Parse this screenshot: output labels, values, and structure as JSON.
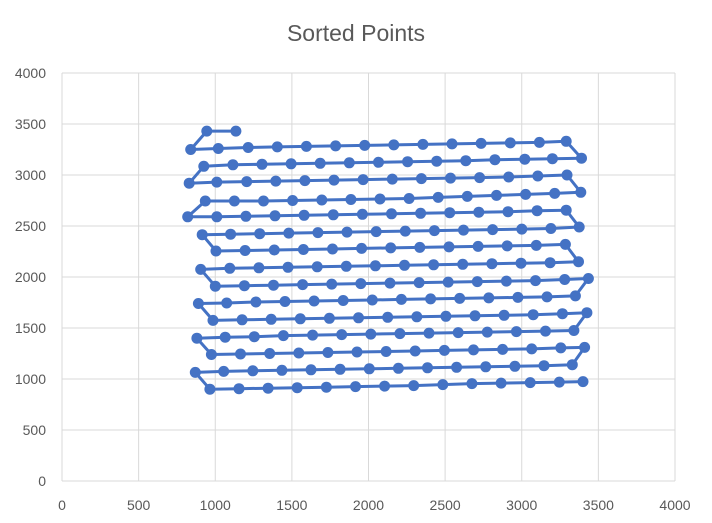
{
  "chart_data": {
    "type": "scatter",
    "title": "Sorted Points",
    "xlabel": "",
    "ylabel": "",
    "xlim": [
      0,
      4000
    ],
    "ylim": [
      0,
      4000
    ],
    "x_ticks": [
      "0",
      "500",
      "1000",
      "1500",
      "2000",
      "2500",
      "3000",
      "3500",
      "4000"
    ],
    "y_ticks": [
      "0",
      "500",
      "1000",
      "1500",
      "2000",
      "2500",
      "3000",
      "3500",
      "4000"
    ],
    "grid": true,
    "legend": "none",
    "series": [
      {
        "color": "#4472C4",
        "marker": "circle",
        "connected": true,
        "points": [
          [
            1135,
            3430
          ],
          [
            945,
            3430
          ],
          [
            840,
            3250
          ],
          [
            1020,
            3260
          ],
          [
            1215,
            3270
          ],
          [
            1405,
            3275
          ],
          [
            1595,
            3280
          ],
          [
            1785,
            3285
          ],
          [
            1975,
            3290
          ],
          [
            2165,
            3295
          ],
          [
            2355,
            3300
          ],
          [
            2545,
            3305
          ],
          [
            2735,
            3310
          ],
          [
            2925,
            3315
          ],
          [
            3115,
            3320
          ],
          [
            3290,
            3330
          ],
          [
            3390,
            3165
          ],
          [
            3200,
            3160
          ],
          [
            3020,
            3155
          ],
          [
            2825,
            3150
          ],
          [
            2635,
            3140
          ],
          [
            2445,
            3135
          ],
          [
            2255,
            3130
          ],
          [
            2065,
            3125
          ],
          [
            1875,
            3120
          ],
          [
            1685,
            3115
          ],
          [
            1495,
            3110
          ],
          [
            1305,
            3105
          ],
          [
            1115,
            3100
          ],
          [
            925,
            3085
          ],
          [
            830,
            2920
          ],
          [
            1010,
            2930
          ],
          [
            1205,
            2935
          ],
          [
            1395,
            2940
          ],
          [
            1585,
            2945
          ],
          [
            1775,
            2950
          ],
          [
            1965,
            2955
          ],
          [
            2155,
            2960
          ],
          [
            2345,
            2965
          ],
          [
            2535,
            2970
          ],
          [
            2725,
            2975
          ],
          [
            2915,
            2980
          ],
          [
            3105,
            2990
          ],
          [
            3295,
            3000
          ],
          [
            3385,
            2830
          ],
          [
            3215,
            2820
          ],
          [
            3025,
            2810
          ],
          [
            2835,
            2800
          ],
          [
            2645,
            2790
          ],
          [
            2455,
            2780
          ],
          [
            2265,
            2770
          ],
          [
            2075,
            2765
          ],
          [
            1885,
            2760
          ],
          [
            1695,
            2755
          ],
          [
            1505,
            2750
          ],
          [
            1315,
            2745
          ],
          [
            1125,
            2745
          ],
          [
            935,
            2745
          ],
          [
            820,
            2590
          ],
          [
            1010,
            2590
          ],
          [
            1200,
            2595
          ],
          [
            1390,
            2600
          ],
          [
            1580,
            2605
          ],
          [
            1770,
            2610
          ],
          [
            1960,
            2615
          ],
          [
            2150,
            2620
          ],
          [
            2340,
            2625
          ],
          [
            2530,
            2630
          ],
          [
            2720,
            2635
          ],
          [
            2910,
            2640
          ],
          [
            3100,
            2650
          ],
          [
            3290,
            2655
          ],
          [
            3375,
            2490
          ],
          [
            3190,
            2475
          ],
          [
            3000,
            2470
          ],
          [
            2810,
            2465
          ],
          [
            2620,
            2460
          ],
          [
            2430,
            2455
          ],
          [
            2240,
            2450
          ],
          [
            2050,
            2445
          ],
          [
            1860,
            2440
          ],
          [
            1670,
            2435
          ],
          [
            1480,
            2430
          ],
          [
            1290,
            2425
          ],
          [
            1100,
            2420
          ],
          [
            915,
            2415
          ],
          [
            1005,
            2255
          ],
          [
            1195,
            2260
          ],
          [
            1385,
            2265
          ],
          [
            1575,
            2270
          ],
          [
            1765,
            2275
          ],
          [
            1955,
            2280
          ],
          [
            2145,
            2285
          ],
          [
            2335,
            2290
          ],
          [
            2525,
            2295
          ],
          [
            2715,
            2300
          ],
          [
            2905,
            2305
          ],
          [
            3095,
            2310
          ],
          [
            3285,
            2320
          ],
          [
            3370,
            2150
          ],
          [
            3185,
            2140
          ],
          [
            2995,
            2135
          ],
          [
            2805,
            2130
          ],
          [
            2615,
            2125
          ],
          [
            2425,
            2120
          ],
          [
            2235,
            2115
          ],
          [
            2045,
            2110
          ],
          [
            1855,
            2105
          ],
          [
            1665,
            2100
          ],
          [
            1475,
            2095
          ],
          [
            1285,
            2090
          ],
          [
            1095,
            2085
          ],
          [
            905,
            2075
          ],
          [
            1000,
            1910
          ],
          [
            1190,
            1915
          ],
          [
            1380,
            1920
          ],
          [
            1570,
            1925
          ],
          [
            1760,
            1930
          ],
          [
            1950,
            1935
          ],
          [
            2140,
            1940
          ],
          [
            2330,
            1945
          ],
          [
            2520,
            1950
          ],
          [
            2710,
            1955
          ],
          [
            2900,
            1960
          ],
          [
            3090,
            1965
          ],
          [
            3280,
            1975
          ],
          [
            3435,
            1985
          ],
          [
            3350,
            1815
          ],
          [
            3165,
            1805
          ],
          [
            2975,
            1800
          ],
          [
            2785,
            1795
          ],
          [
            2595,
            1790
          ],
          [
            2405,
            1785
          ],
          [
            2215,
            1780
          ],
          [
            2025,
            1775
          ],
          [
            1835,
            1770
          ],
          [
            1645,
            1765
          ],
          [
            1455,
            1760
          ],
          [
            1265,
            1755
          ],
          [
            1075,
            1745
          ],
          [
            890,
            1740
          ],
          [
            985,
            1575
          ],
          [
            1175,
            1580
          ],
          [
            1365,
            1585
          ],
          [
            1555,
            1590
          ],
          [
            1745,
            1595
          ],
          [
            1935,
            1600
          ],
          [
            2125,
            1605
          ],
          [
            2315,
            1610
          ],
          [
            2505,
            1615
          ],
          [
            2695,
            1620
          ],
          [
            2885,
            1625
          ],
          [
            3075,
            1630
          ],
          [
            3265,
            1640
          ],
          [
            3425,
            1650
          ],
          [
            3340,
            1475
          ],
          [
            3155,
            1470
          ],
          [
            2965,
            1465
          ],
          [
            2775,
            1460
          ],
          [
            2585,
            1455
          ],
          [
            2395,
            1450
          ],
          [
            2205,
            1445
          ],
          [
            2015,
            1440
          ],
          [
            1825,
            1435
          ],
          [
            1635,
            1430
          ],
          [
            1445,
            1425
          ],
          [
            1255,
            1415
          ],
          [
            1065,
            1410
          ],
          [
            880,
            1400
          ],
          [
            975,
            1240
          ],
          [
            1165,
            1245
          ],
          [
            1355,
            1250
          ],
          [
            1545,
            1255
          ],
          [
            1735,
            1260
          ],
          [
            1925,
            1265
          ],
          [
            2115,
            1270
          ],
          [
            2305,
            1275
          ],
          [
            2495,
            1280
          ],
          [
            2685,
            1285
          ],
          [
            2875,
            1290
          ],
          [
            3065,
            1295
          ],
          [
            3255,
            1305
          ],
          [
            3410,
            1310
          ],
          [
            3330,
            1140
          ],
          [
            3145,
            1130
          ],
          [
            2955,
            1125
          ],
          [
            2765,
            1120
          ],
          [
            2575,
            1115
          ],
          [
            2385,
            1110
          ],
          [
            2195,
            1105
          ],
          [
            2005,
            1100
          ],
          [
            1815,
            1095
          ],
          [
            1625,
            1090
          ],
          [
            1435,
            1085
          ],
          [
            1245,
            1080
          ],
          [
            1055,
            1075
          ],
          [
            870,
            1065
          ],
          [
            965,
            900
          ],
          [
            1155,
            905
          ],
          [
            1345,
            910
          ],
          [
            1535,
            915
          ],
          [
            1725,
            920
          ],
          [
            1915,
            925
          ],
          [
            2105,
            930
          ],
          [
            2295,
            935
          ],
          [
            2485,
            945
          ],
          [
            2675,
            955
          ],
          [
            2865,
            960
          ],
          [
            3055,
            965
          ],
          [
            3245,
            970
          ],
          [
            3400,
            975
          ]
        ]
      }
    ]
  }
}
